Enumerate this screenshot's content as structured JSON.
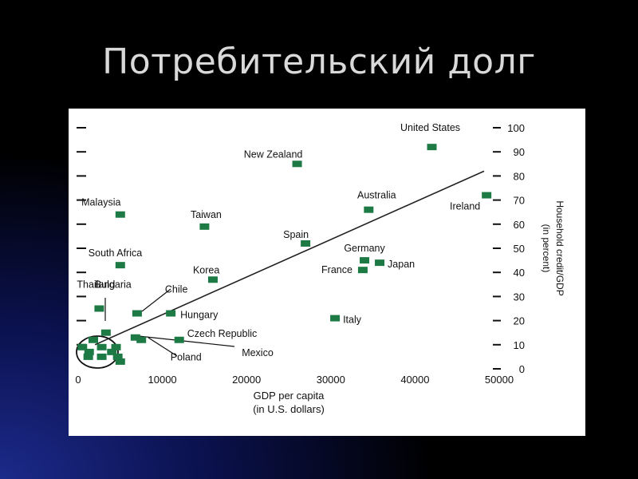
{
  "slide": {
    "title": "Потребительский долг"
  },
  "chart_data": {
    "type": "scatter",
    "xlabel": "GDP per capita",
    "xlabel_unit": "(in U.S. dollars)",
    "ylabel": "Household credit/GDP",
    "ylabel_unit": "(in percent)",
    "xlim": [
      0,
      50000
    ],
    "ylim": [
      0,
      100
    ],
    "x_ticks": [
      0,
      10000,
      20000,
      30000,
      40000,
      50000
    ],
    "y_ticks": [
      0,
      10,
      20,
      30,
      40,
      50,
      60,
      70,
      80,
      90,
      100
    ],
    "grid": false,
    "marker_color": "#1e7a45",
    "trend_line": {
      "x": [
        2000,
        48200
      ],
      "y": [
        10,
        82
      ]
    },
    "points": [
      {
        "label": "United States",
        "x": 42000,
        "y": 92
      },
      {
        "label": "New Zealand",
        "x": 26000,
        "y": 85
      },
      {
        "label": "Ireland",
        "x": 48500,
        "y": 72
      },
      {
        "label": "Australia",
        "x": 34500,
        "y": 66
      },
      {
        "label": "Malaysia",
        "x": 5000,
        "y": 64
      },
      {
        "label": "Taiwan",
        "x": 15000,
        "y": 59
      },
      {
        "label": "Spain",
        "x": 27000,
        "y": 52
      },
      {
        "label": "Germany",
        "x": 34000,
        "y": 45
      },
      {
        "label": "Japan",
        "x": 35800,
        "y": 44
      },
      {
        "label": "France",
        "x": 33800,
        "y": 41
      },
      {
        "label": "South Africa",
        "x": 5000,
        "y": 43
      },
      {
        "label": "Korea",
        "x": 16000,
        "y": 37
      },
      {
        "label": "Thailand",
        "x": 2500,
        "y": 25
      },
      {
        "label": "Chile",
        "x": 7000,
        "y": 23
      },
      {
        "label": "Hungary",
        "x": 11000,
        "y": 23
      },
      {
        "label": "Italy",
        "x": 30500,
        "y": 21
      },
      {
        "label": "Bulgaria",
        "x": 3300,
        "y": 15
      },
      {
        "label": "Czech Republic",
        "x": 12000,
        "y": 12
      },
      {
        "label": "Mexico",
        "x": 7500,
        "y": 12
      },
      {
        "label": "Poland",
        "x": 6800,
        "y": 13
      },
      {
        "label": "",
        "x": 1800,
        "y": 12
      },
      {
        "label": "",
        "x": 500,
        "y": 9
      },
      {
        "label": "",
        "x": 1300,
        "y": 7
      },
      {
        "label": "",
        "x": 2800,
        "y": 9
      },
      {
        "label": "",
        "x": 4500,
        "y": 9
      },
      {
        "label": "",
        "x": 4000,
        "y": 7
      },
      {
        "label": "",
        "x": 1200,
        "y": 5
      },
      {
        "label": "",
        "x": 2800,
        "y": 5
      },
      {
        "label": "",
        "x": 4700,
        "y": 5
      },
      {
        "label": "",
        "x": 5000,
        "y": 3
      }
    ]
  }
}
